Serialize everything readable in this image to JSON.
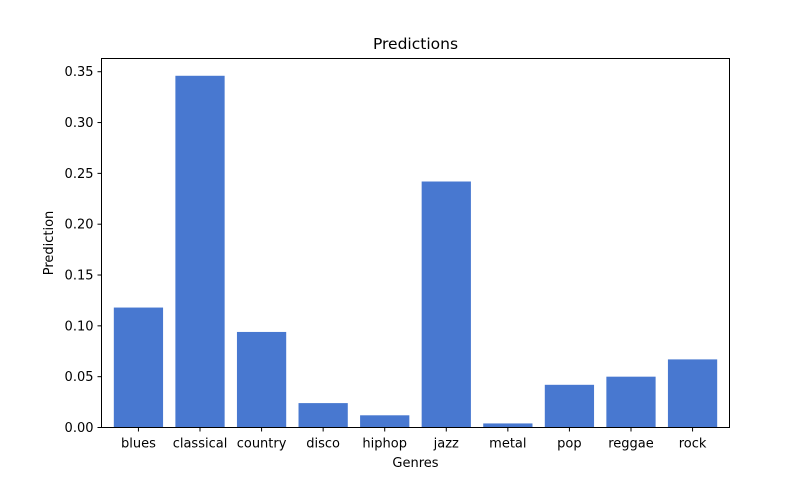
{
  "chart_data": {
    "type": "bar",
    "title": "Predictions",
    "xlabel": "Genres",
    "ylabel": "Prediction",
    "categories": [
      "blues",
      "classical",
      "country",
      "disco",
      "hiphop",
      "jazz",
      "metal",
      "pop",
      "reggae",
      "rock"
    ],
    "values": [
      0.118,
      0.346,
      0.094,
      0.024,
      0.012,
      0.242,
      0.004,
      0.042,
      0.05,
      0.067
    ],
    "ylim": [
      0,
      0.363
    ],
    "yticks": [
      0.0,
      0.05,
      0.1,
      0.15,
      0.2,
      0.25,
      0.3,
      0.35
    ],
    "ytick_labels": [
      "0.00",
      "0.05",
      "0.10",
      "0.15",
      "0.20",
      "0.25",
      "0.30",
      "0.35"
    ],
    "bar_color": "#4878d0",
    "grid": false,
    "legend": "none"
  }
}
